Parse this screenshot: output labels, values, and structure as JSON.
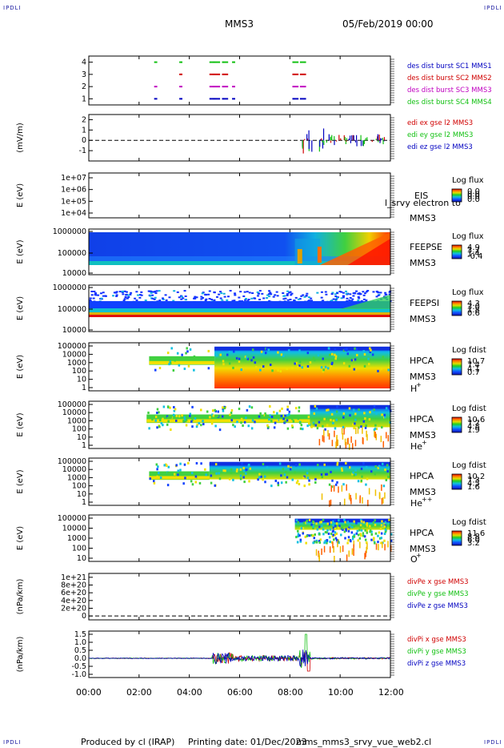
{
  "header": {
    "corner_label": "IPDLI",
    "mission": "MMS3",
    "date": "05/Feb/2019 00:00"
  },
  "footer": {
    "produced_by": "Produced by cl (IRAP)",
    "printing_date": "Printing date: 01/Dec/2023",
    "file": "mms_mms3_srvy_vue_web2.cl"
  },
  "time_axis": {
    "ticks": [
      "00:00",
      "02:00",
      "04:00",
      "06:00",
      "08:00",
      "10:00",
      "12:00"
    ],
    "range_hours": [
      0,
      12
    ]
  },
  "colors": {
    "red": "#d00000",
    "green": "#10c010",
    "blue": "#0000c0",
    "magenta": "#c000c0",
    "title_blue": "#1a1aa0"
  },
  "chart_data": [
    {
      "type": "scatter",
      "panel": "burst",
      "yticks": [
        "4",
        "3",
        "2",
        "1"
      ],
      "ylim": [
        0.5,
        4.5
      ],
      "series": [
        {
          "name": "des dist burst SC1 MMS1",
          "color": "#0000c0",
          "y": 1,
          "intervals_h": [
            [
              2.6,
              2.7
            ],
            [
              3.6,
              3.7
            ],
            [
              4.8,
              5.2
            ],
            [
              5.3,
              5.5
            ],
            [
              5.7,
              5.8
            ],
            [
              8.1,
              8.3
            ],
            [
              8.4,
              8.6
            ]
          ]
        },
        {
          "name": "des dist burst SC2 MMS2",
          "color": "#d00000",
          "y": 3,
          "intervals_h": [
            [
              3.6,
              3.7
            ],
            [
              4.8,
              5.2
            ],
            [
              5.3,
              5.5
            ],
            [
              8.1,
              8.3
            ],
            [
              8.4,
              8.6
            ]
          ]
        },
        {
          "name": "des dist burst SC3 MMS3",
          "color": "#c000c0",
          "y": 2,
          "intervals_h": [
            [
              2.6,
              2.7
            ],
            [
              3.6,
              3.7
            ],
            [
              4.8,
              5.2
            ],
            [
              5.3,
              5.5
            ],
            [
              5.7,
              5.8
            ],
            [
              8.1,
              8.3
            ],
            [
              8.4,
              8.6
            ]
          ]
        },
        {
          "name": "des dist burst SC4 MMS4",
          "color": "#10c010",
          "y": 4,
          "intervals_h": [
            [
              2.6,
              2.7
            ],
            [
              3.6,
              3.7
            ],
            [
              4.8,
              5.2
            ],
            [
              5.3,
              5.5
            ],
            [
              5.7,
              5.8
            ],
            [
              8.1,
              8.3
            ],
            [
              8.4,
              8.6
            ]
          ]
        }
      ]
    },
    {
      "type": "line",
      "panel": "edi",
      "ylabel": "(mV/m)",
      "yticks": [
        "2",
        "1",
        "0",
        "-1"
      ],
      "ylim": [
        -2,
        2.5
      ],
      "series": [
        {
          "name": "edi ex gse l2 MMS3",
          "color": "#d00000"
        },
        {
          "name": "edi ey gse l2 MMS3",
          "color": "#10c010"
        },
        {
          "name": "edi ez gse l2 MMS3",
          "color": "#0000c0"
        }
      ]
    },
    {
      "type": "heatmap",
      "panel": "eis",
      "ylabel": "E (eV)",
      "yticks": [
        "1e+07",
        "1e+06",
        "1e+05",
        "1e+04"
      ],
      "label1": "EIS",
      "label_overlap": "l_srvy electron to",
      "label2": "MMS3",
      "cbar_title": "Log flux",
      "cbar_ticks": [
        "0.0",
        "0.0",
        "0.0",
        "0.0"
      ]
    },
    {
      "type": "heatmap",
      "panel": "feepse",
      "ylabel": "E (eV)",
      "yticks": [
        "1000000",
        "100000",
        "10000"
      ],
      "label1": "FEEPSE",
      "label2": "MMS3",
      "cbar_title": "Log flux",
      "cbar_ticks": [
        "4.9",
        "3.2",
        "1.4",
        "-0.4"
      ]
    },
    {
      "type": "heatmap",
      "panel": "feepsi",
      "ylabel": "E (eV)",
      "yticks": [
        "1000000",
        "100000",
        "10000"
      ],
      "label1": "FEEPSI",
      "label2": "MMS3",
      "cbar_title": "Log flux",
      "cbar_ticks": [
        "4.3",
        "3.0",
        "1.8",
        "0.6"
      ]
    },
    {
      "type": "heatmap",
      "panel": "hpca_h",
      "ylabel": "E (eV)",
      "yticks": [
        "100000",
        "10000",
        "1000",
        "100",
        "10",
        "1"
      ],
      "label1": "HPCA",
      "label2": "MMS3",
      "species": "H",
      "charge": "+",
      "cbar_title": "Log fdist",
      "cbar_ticks": [
        "10.7",
        "7.4",
        "4.1",
        "0.7"
      ]
    },
    {
      "type": "heatmap",
      "panel": "hpca_he",
      "ylabel": "E (eV)",
      "yticks": [
        "100000",
        "10000",
        "1000",
        "100",
        "10",
        "1"
      ],
      "label1": "HPCA",
      "label2": "MMS3",
      "species": "He",
      "charge": "+",
      "cbar_title": "Log fdist",
      "cbar_ticks": [
        "10.6",
        "7.7",
        "4.8",
        "1.9"
      ]
    },
    {
      "type": "heatmap",
      "panel": "hpca_hepp",
      "ylabel": "E (eV)",
      "yticks": [
        "100000",
        "10000",
        "1000",
        "100",
        "10",
        "1"
      ],
      "label1": "HPCA",
      "label2": "MMS3",
      "species": "He",
      "charge": "++",
      "cbar_title": "Log fdist",
      "cbar_ticks": [
        "10.2",
        "7.3",
        "4.5",
        "1.6"
      ]
    },
    {
      "type": "heatmap",
      "panel": "hpca_o",
      "ylabel": "E (eV)",
      "yticks": [
        "100000",
        "10000",
        "1000",
        "100",
        "10"
      ],
      "label1": "HPCA",
      "label2": "MMS3",
      "species": "O",
      "charge": "+",
      "cbar_title": "Log fdist",
      "cbar_ticks": [
        "11.6",
        "8.8",
        "6.0",
        "3.2"
      ]
    },
    {
      "type": "line",
      "panel": "divpe",
      "ylabel": "(nPa/km)",
      "yticks": [
        "1e+21",
        "8e+20",
        "6e+20",
        "4e+20",
        "2e+20",
        "0"
      ],
      "ylim": [
        -1e+20,
        1.1e+21
      ],
      "series": [
        {
          "name": "divPe x gse MMS3",
          "color": "#d00000"
        },
        {
          "name": "divPe y gse MMS3",
          "color": "#10c010"
        },
        {
          "name": "divPe z gse MMS3",
          "color": "#0000c0"
        }
      ]
    },
    {
      "type": "line",
      "panel": "divpi",
      "ylabel": "(nPa/km)",
      "yticks": [
        "1.5",
        "1.0",
        "0.5",
        "0.0",
        "-0.5",
        "-1.0"
      ],
      "ylim": [
        -1.2,
        1.7
      ],
      "series": [
        {
          "name": "divPi x gse MMS3",
          "color": "#d00000"
        },
        {
          "name": "divPi y gse MMS3",
          "color": "#10c010"
        },
        {
          "name": "divPi z gse MMS3",
          "color": "#0000c0"
        }
      ]
    }
  ]
}
